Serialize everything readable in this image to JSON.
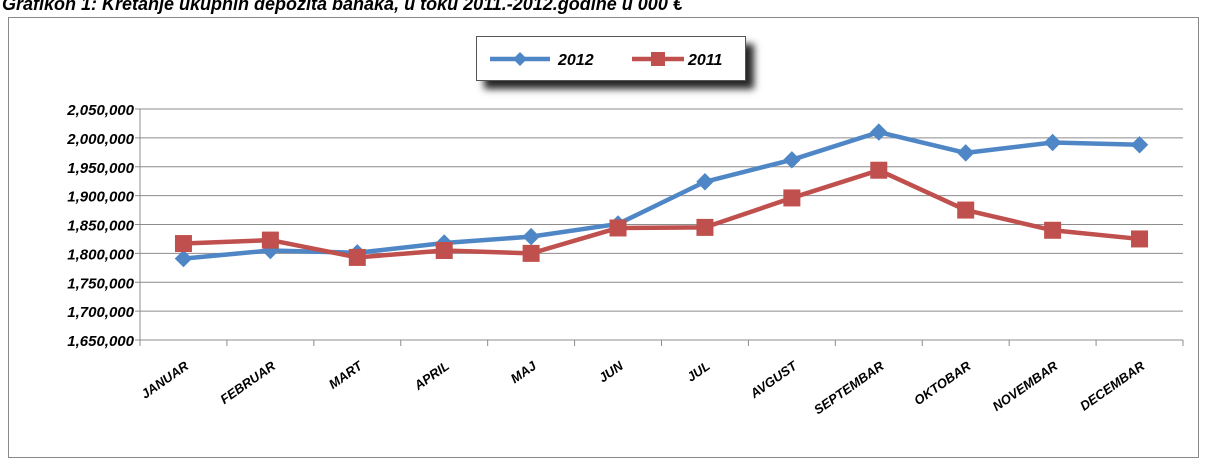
{
  "title": "Grafikon 1: Kretanje ukupnih depozita banaka, u toku 2011.-2012.godine u 000 €",
  "chart_data": {
    "type": "line",
    "title": "Grafikon 1: Kretanje ukupnih depozita banaka, u toku 2011.-2012.godine u 000 €",
    "categories": [
      "JANUAR",
      "FEBRUAR",
      "MART",
      "APRIL",
      "MAJ",
      "JUN",
      "JUL",
      "AVGUST",
      "SEPTEMBAR",
      "OKTOBAR",
      "NOVEMBAR",
      "DECEMBAR"
    ],
    "series": [
      {
        "name": "2012",
        "color": "#4f86c6",
        "marker": "diamond",
        "values": [
          1791000,
          1805000,
          1801000,
          1818000,
          1829000,
          1851000,
          1924000,
          1962000,
          2010000,
          1974000,
          1992000,
          1988000
        ]
      },
      {
        "name": "2011",
        "color": "#c0504d",
        "marker": "square",
        "values": [
          1817000,
          1823000,
          1793000,
          1805000,
          1800000,
          1844000,
          1845000,
          1896000,
          1944000,
          1875000,
          1840000,
          1825000
        ]
      }
    ],
    "ylim": [
      1650000,
      2050000
    ],
    "yticks": [
      1650000,
      1700000,
      1750000,
      1800000,
      1850000,
      1900000,
      1950000,
      2000000,
      2050000
    ],
    "ytick_labels": [
      "1,650,000",
      "1,700,000",
      "1,750,000",
      "1,800,000",
      "1,850,000",
      "1,900,000",
      "1,950,000",
      "2,000,000",
      "2,050,000"
    ],
    "grid": true,
    "legend": "top-center"
  }
}
